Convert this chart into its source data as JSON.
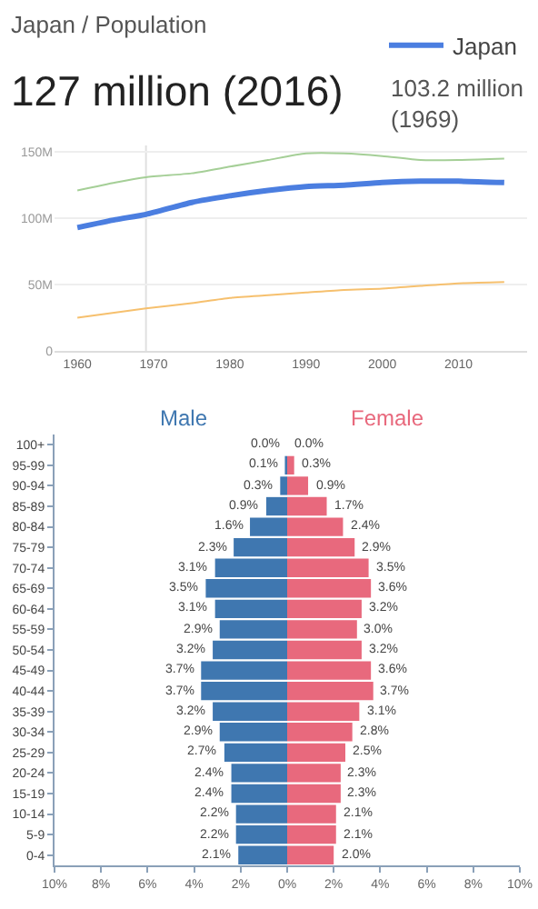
{
  "chart_data": [
    {
      "type": "line",
      "subtitle": "Japan / Population",
      "title": "127 million (2016)",
      "annotations": [
        "103.2 million (1969)"
      ],
      "legend": "top right",
      "grid": "y",
      "xlim": [
        1957,
        2019
      ],
      "xticks": [
        1960,
        1970,
        1980,
        1990,
        2000,
        2010
      ],
      "ylim": [
        0,
        155
      ],
      "yticks": [
        {
          "value": 0,
          "label": "0"
        },
        {
          "value": 50,
          "label": "50M"
        },
        {
          "value": 100,
          "label": "100M"
        },
        {
          "value": 150,
          "label": "150M"
        }
      ],
      "ref_lines": [
        {
          "axis": "x",
          "value": 1969,
          "color": "#e0e0e0"
        }
      ],
      "series": [
        {
          "color": "#a5cf97",
          "x": [
            1960,
            1965,
            1969,
            1975,
            1980,
            1985,
            1990,
            1995,
            2000,
            2005,
            2010,
            2016
          ],
          "values": [
            121,
            127,
            131,
            134,
            139,
            144,
            149,
            149,
            147,
            144,
            144,
            145
          ]
        },
        {
          "color": "#f6c06e",
          "x": [
            1960,
            1969,
            1975,
            1980,
            1985,
            1990,
            1995,
            2000,
            2005,
            2010,
            2016
          ],
          "values": [
            25,
            32,
            36,
            40,
            42,
            44,
            46,
            47,
            49,
            51,
            52
          ]
        },
        {
          "name": "Japan",
          "color": "#4b7ee0",
          "x": [
            1960,
            1965,
            1969,
            1975,
            1980,
            1985,
            1990,
            1995,
            2000,
            2005,
            2010,
            2016
          ],
          "values": [
            93,
            99,
            103,
            112,
            117,
            121,
            124,
            125,
            127,
            128,
            128,
            127
          ]
        }
      ]
    },
    {
      "type": "bar",
      "orientation": "horizontal",
      "legend": false,
      "categories": [
        "100+",
        "95-99",
        "90-94",
        "85-89",
        "80-84",
        "75-79",
        "70-74",
        "65-69",
        "60-64",
        "55-59",
        "50-54",
        "45-49",
        "40-44",
        "35-39",
        "30-34",
        "25-29",
        "20-24",
        "15-19",
        "10-14",
        "5-9",
        "0-4"
      ],
      "xlim": [
        -10,
        10
      ],
      "xticks": [
        {
          "value": -10,
          "label": "10%"
        },
        {
          "value": -8,
          "label": "8%"
        },
        {
          "value": -6,
          "label": "6%"
        },
        {
          "value": -4,
          "label": "4%"
        },
        {
          "value": -2,
          "label": "2%"
        },
        {
          "value": 0,
          "label": "0%"
        },
        {
          "value": 2,
          "label": "2%"
        },
        {
          "value": 4,
          "label": "4%"
        },
        {
          "value": 6,
          "label": "6%"
        },
        {
          "value": 8,
          "label": "8%"
        },
        {
          "value": 10,
          "label": "10%"
        }
      ],
      "series": [
        {
          "name": "Male",
          "color": "#3f77b0",
          "values": [
            0.0,
            0.1,
            0.3,
            0.9,
            1.6,
            2.3,
            3.1,
            3.5,
            3.1,
            2.9,
            3.2,
            3.7,
            3.7,
            3.2,
            2.9,
            2.7,
            2.4,
            2.4,
            2.2,
            2.2,
            2.1
          ],
          "base": [
            null,
            -0.1,
            -0.3,
            -0.9,
            -1.6,
            -2.3,
            -3.1,
            -3.5,
            -3.1,
            -2.9,
            -3.2,
            -3.7,
            -3.7,
            -3.2,
            -2.9,
            -2.7,
            -2.4,
            -2.4,
            -2.2,
            -2.2,
            -2.1
          ],
          "value_labels": [
            "0.0%",
            "0.1%",
            "0.3%",
            "0.9%",
            "1.6%",
            "2.3%",
            "3.1%",
            "3.5%",
            "3.1%",
            "2.9%",
            "3.2%",
            "3.7%",
            "3.7%",
            "3.2%",
            "2.9%",
            "2.7%",
            "2.4%",
            "2.4%",
            "2.2%",
            "2.2%",
            "2.1%"
          ]
        },
        {
          "name": "Female",
          "color": "#e8697d",
          "values": [
            0.0,
            0.3,
            0.9,
            1.7,
            2.4,
            2.9,
            3.5,
            3.6,
            3.2,
            3.0,
            3.2,
            3.6,
            3.7,
            3.1,
            2.8,
            2.5,
            2.3,
            2.3,
            2.1,
            2.1,
            2.0
          ],
          "value_labels": [
            "0.0%",
            "0.3%",
            "0.9%",
            "1.7%",
            "2.4%",
            "2.9%",
            "3.5%",
            "3.6%",
            "3.2%",
            "3.0%",
            "3.2%",
            "3.6%",
            "3.7%",
            "3.1%",
            "2.8%",
            "2.5%",
            "2.3%",
            "2.3%",
            "2.1%",
            "2.1%",
            "2.0%"
          ]
        }
      ]
    }
  ]
}
